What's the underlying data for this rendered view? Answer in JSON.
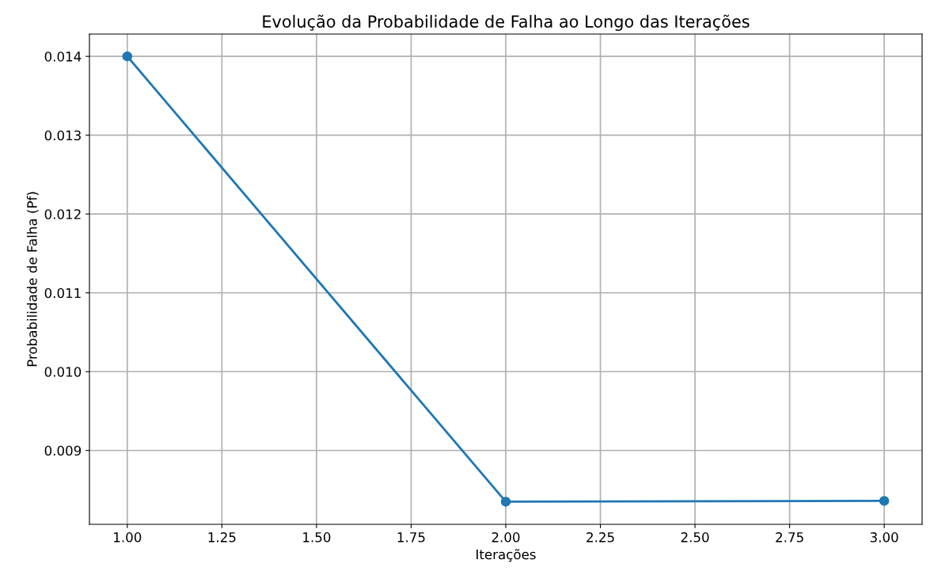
{
  "chart_data": {
    "type": "line",
    "title": "Evolução da Probabilidade de Falha ao Longo das Iterações",
    "xlabel": "Iterações",
    "ylabel": "Probabilidade de Falha (Pf)",
    "x": [
      1,
      2,
      3
    ],
    "series": [
      {
        "color": "#1f77b4",
        "values": [
          0.014,
          0.00835,
          0.00836
        ]
      }
    ],
    "xlim": [
      0.9,
      3.1
    ],
    "ylim": [
      0.008063,
      0.014283
    ],
    "xticks": [
      {
        "value": 1,
        "label": "1.00"
      },
      {
        "value": 1.25,
        "label": "1.25"
      },
      {
        "value": 1.5,
        "label": "1.50"
      },
      {
        "value": 1.75,
        "label": "1.75"
      },
      {
        "value": 2,
        "label": "2.00"
      },
      {
        "value": 2.25,
        "label": "2.25"
      },
      {
        "value": 2.5,
        "label": "2.50"
      },
      {
        "value": 2.75,
        "label": "2.75"
      },
      {
        "value": 3,
        "label": "3.00"
      }
    ],
    "yticks": [
      0.009,
      {
        "value": 0.01,
        "label": "0.010"
      },
      0.011,
      0.012,
      0.013,
      0.014
    ],
    "grid": true,
    "marker": "circle",
    "line_style": "solid"
  }
}
